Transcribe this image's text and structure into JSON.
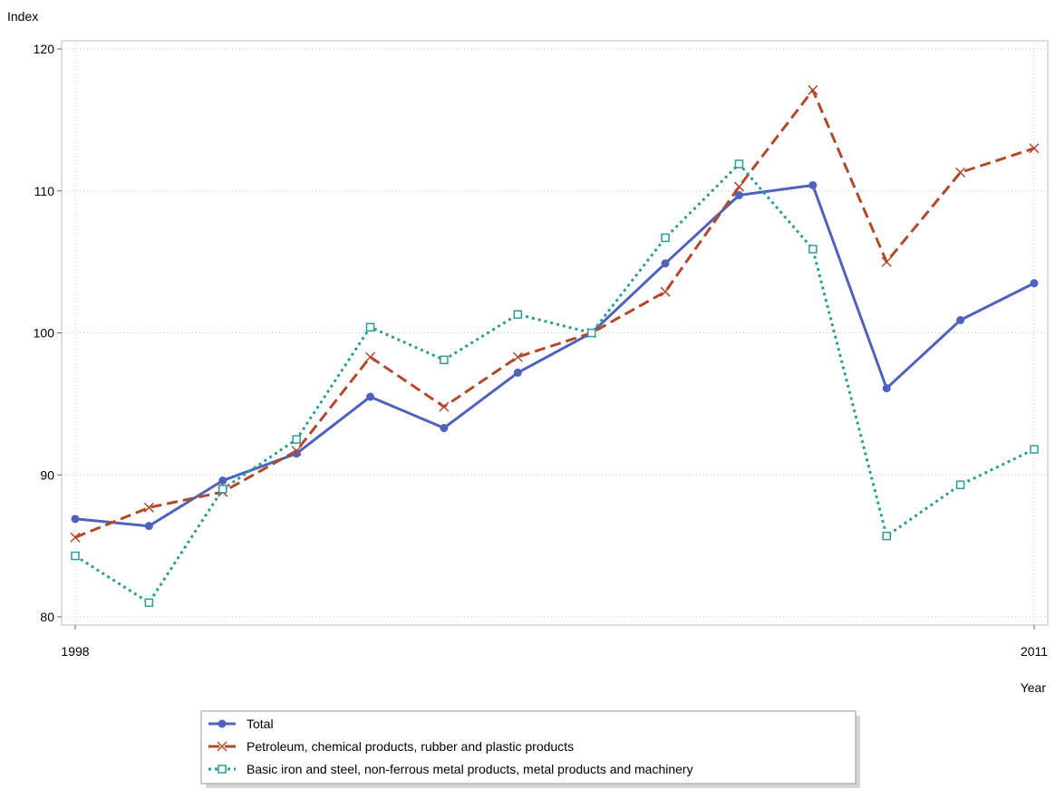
{
  "chart_data": {
    "type": "line",
    "title": "",
    "xlabel": "Year",
    "ylabel": "Index",
    "x": [
      1998,
      1999,
      2000,
      2001,
      2002,
      2003,
      2004,
      2005,
      2006,
      2007,
      2008,
      2009,
      2010,
      2011
    ],
    "xlim": [
      1998,
      2011
    ],
    "xticks": [
      1998,
      2011
    ],
    "x_tick_labels": [
      "1998",
      "2011"
    ],
    "ylim": [
      80,
      120
    ],
    "yticks": [
      80,
      90,
      100,
      110,
      120
    ],
    "y_tick_labels": [
      "80",
      "90",
      "100",
      "110",
      "120"
    ],
    "grid": true,
    "legend_position": "bottom",
    "series": [
      {
        "name": "Total",
        "color": "#4F63BE",
        "line_style": "solid",
        "marker": "filled-circle",
        "values": [
          86.9,
          86.4,
          89.6,
          91.5,
          95.5,
          93.3,
          97.2,
          100.0,
          104.9,
          109.7,
          110.4,
          96.1,
          100.9,
          103.5
        ]
      },
      {
        "name": "Petroleum, chemical products, rubber and plastic products",
        "color": "#B5472A",
        "line_style": "dashed",
        "marker": "x",
        "values": [
          85.6,
          87.7,
          88.8,
          91.7,
          98.3,
          94.8,
          98.3,
          100.0,
          102.9,
          110.3,
          117.1,
          105.0,
          111.3,
          113.0
        ]
      },
      {
        "name": "Basic iron and steel, non-ferrous metal products, metal products and machinery",
        "color": "#2A9D98",
        "line_style": "dotted",
        "marker": "open-square",
        "values": [
          84.3,
          81.0,
          89.0,
          92.5,
          100.4,
          98.1,
          101.3,
          100.0,
          106.7,
          111.9,
          105.9,
          85.7,
          89.3,
          91.8
        ]
      }
    ]
  }
}
